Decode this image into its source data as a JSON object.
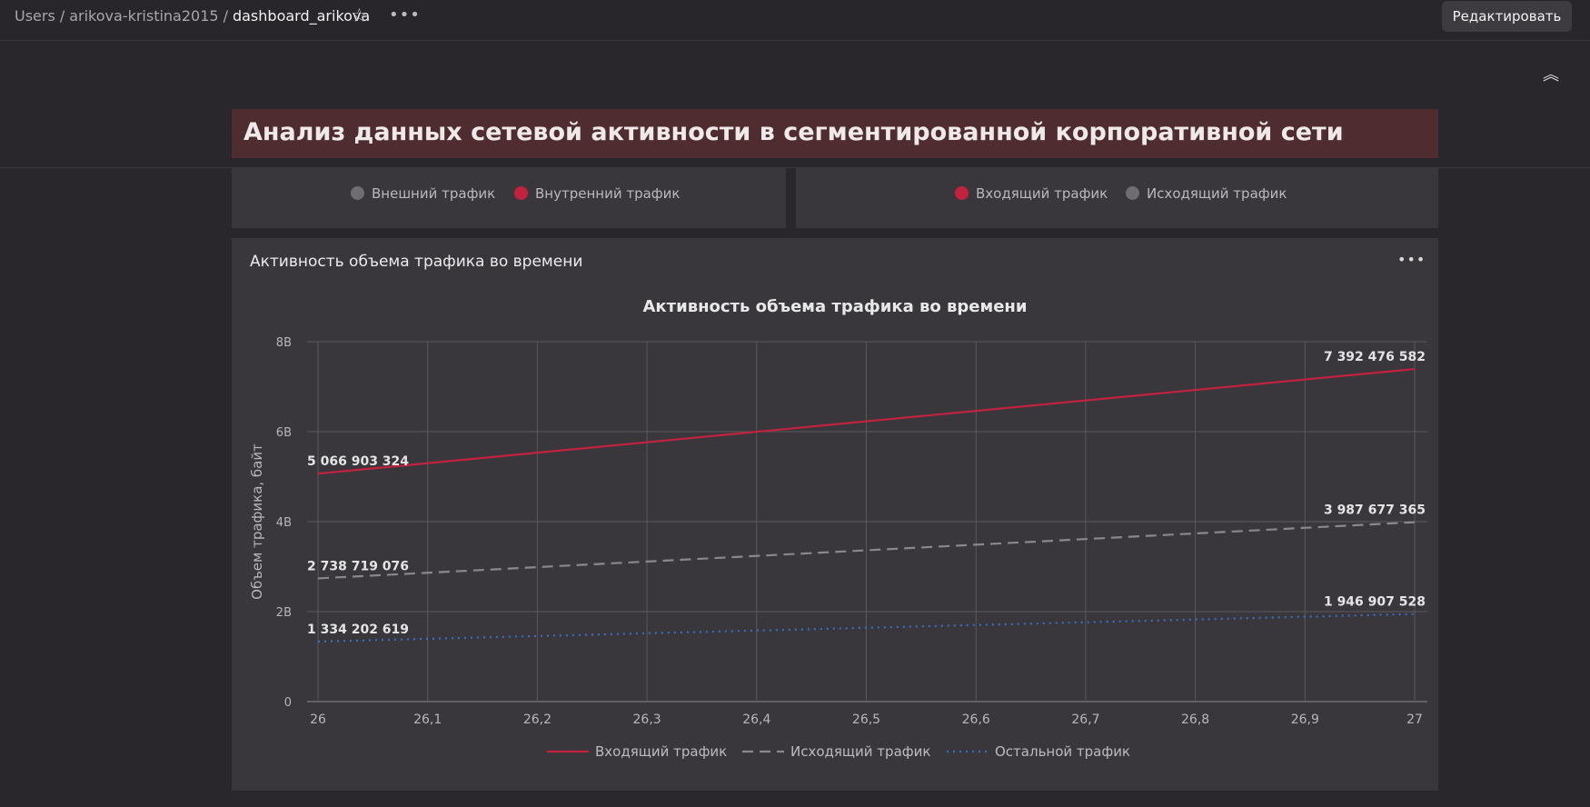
{
  "breadcrumb": {
    "items": [
      "Users",
      "arikova-kristina2015"
    ],
    "separator": "/",
    "current": "dashboard_arikova"
  },
  "toolbar": {
    "star_icon": "star-icon",
    "more_icon": "ellipsis-icon",
    "edit_label": "Редактировать"
  },
  "header": {
    "collapse_icon": "double-chevron-up-icon",
    "title": "Анализ данных сетевой активности в сегментированной корпоративной сети"
  },
  "legend_left": {
    "items": [
      {
        "label": "Внешний трафик",
        "color": "#6f6d72"
      },
      {
        "label": "Внутренний трафик",
        "color": "#c3223f"
      }
    ]
  },
  "legend_right": {
    "items": [
      {
        "label": "Входящий трафик",
        "color": "#c3223f"
      },
      {
        "label": "Исходящий трафик",
        "color": "#6f6d72"
      }
    ]
  },
  "chart_panel": {
    "title": "Активность объема трафика во времени",
    "more_icon": "ellipsis-icon"
  },
  "chart_data": {
    "type": "line",
    "title": "Активность объема трафика во времени",
    "xlabel": "",
    "ylabel": "Объем трафика, байт",
    "x": [
      26,
      27
    ],
    "x_ticks": [
      "26",
      "26,1",
      "26,2",
      "26,3",
      "26,4",
      "26,5",
      "26,6",
      "26,7",
      "26,8",
      "26,9",
      "27"
    ],
    "y_ticks": [
      "0",
      "2B",
      "4B",
      "6B",
      "8B"
    ],
    "ylim": [
      0,
      8000000000
    ],
    "xlim": [
      26,
      27
    ],
    "grid": true,
    "legend_position": "bottom",
    "series": [
      {
        "name": "Входящий трафик",
        "values": [
          5066903324,
          7392476582
        ],
        "labels": [
          "5 066 903 324",
          "7 392 476 582"
        ],
        "color": "#c3223f",
        "style": "solid"
      },
      {
        "name": "Исходящий трафик",
        "values": [
          2738719076,
          3987677365
        ],
        "labels": [
          "2 738 719 076",
          "3 987 677 365"
        ],
        "color": "#8a888c",
        "style": "dashed"
      },
      {
        "name": "Остальной трафик",
        "values": [
          1334202619,
          1946907528
        ],
        "labels": [
          "1 334 202 619",
          "1 946 907 528"
        ],
        "color": "#3a6fc0",
        "style": "dotted"
      }
    ]
  }
}
